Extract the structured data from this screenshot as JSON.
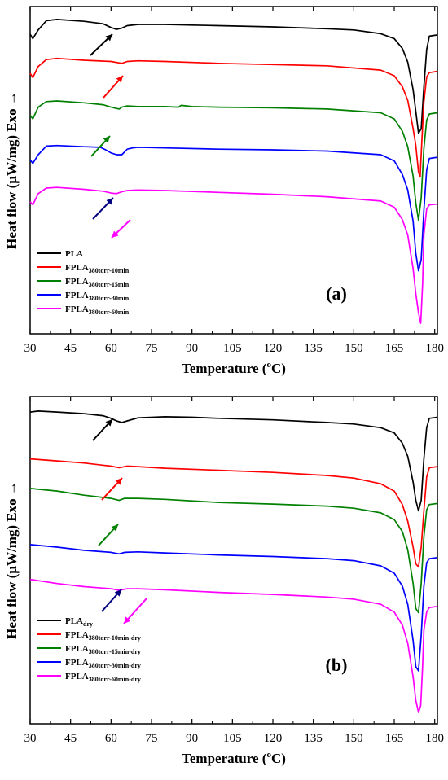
{
  "chart_data": [
    {
      "type": "line",
      "panel_label": "(a)",
      "xlabel": "Temperature (°C)",
      "xlabel_main": "Temperature (",
      "xlabel_sup": "o",
      "xlabel_end": "C)",
      "ylabel": "Heat flow (μW/mg) Exo →",
      "xlim": [
        30,
        181
      ],
      "xticks": [
        "30",
        "45",
        "60",
        "75",
        "90",
        "105",
        "120",
        "135",
        "150",
        "165",
        "180"
      ],
      "xtick_values": [
        30,
        45,
        60,
        75,
        90,
        105,
        120,
        135,
        150,
        165,
        180
      ],
      "y_ticks_shown": false,
      "legend_position": "lower-left",
      "series": [
        {
          "name": "PLA",
          "name_main": "PLA",
          "name_sub": "",
          "color": "#000000",
          "x": [
            30,
            31,
            33,
            36,
            40,
            50,
            57,
            60,
            62,
            64,
            66,
            70,
            80,
            90,
            100,
            120,
            140,
            150,
            160,
            165,
            168,
            170,
            172,
            173,
            174,
            175,
            176,
            177,
            178,
            181
          ],
          "y": [
            20.5,
            19.8,
            21.2,
            22.7,
            22.9,
            22.6,
            22.2,
            21.6,
            21.3,
            21.5,
            21.9,
            22.1,
            22.1,
            22.0,
            21.9,
            21.7,
            21.4,
            21.2,
            20.6,
            19.8,
            18.2,
            16.0,
            11.5,
            8.0,
            4.5,
            5.2,
            12.0,
            18.0,
            20.2,
            20.4
          ]
        },
        {
          "name": "FPLA380torr-10min",
          "name_main": "FPLA",
          "name_sub": "380torr-10min",
          "color": "#ff0000",
          "x": [
            30,
            31,
            33,
            36,
            40,
            50,
            60,
            64,
            66,
            70,
            80,
            100,
            120,
            140,
            160,
            165,
            168,
            170,
            172,
            173,
            174,
            174.6,
            175.2,
            176,
            177,
            178,
            181
          ],
          "y": [
            14.2,
            13.5,
            15.3,
            16.4,
            16.6,
            16.3,
            16.1,
            15.8,
            16.1,
            16.2,
            16.1,
            15.8,
            15.6,
            15.4,
            14.7,
            13.8,
            12.0,
            9.8,
            5.2,
            2.5,
            -1.8,
            -2.6,
            3.0,
            9.5,
            13.6,
            14.3,
            14.5
          ]
        },
        {
          "name": "FPLA380torr-15min",
          "name_main": "FPLA",
          "name_sub": "380torr-15min",
          "color": "#008000",
          "x": [
            30,
            31,
            33,
            36,
            40,
            50,
            57,
            60,
            62,
            63,
            64,
            66,
            70,
            80,
            85,
            86,
            90,
            100,
            120,
            140,
            160,
            165,
            168,
            170,
            172,
            173,
            174,
            175,
            176,
            177,
            178,
            181
          ],
          "y": [
            7.4,
            6.8,
            8.7,
            9.6,
            9.7,
            9.4,
            9.1,
            8.7,
            8.5,
            8.4,
            8.7,
            8.9,
            8.8,
            8.8,
            8.7,
            9.0,
            8.8,
            8.7,
            8.6,
            8.4,
            7.8,
            6.8,
            4.8,
            2.3,
            -2.5,
            -6.8,
            -9.6,
            -6.0,
            2.0,
            6.6,
            7.6,
            7.8
          ]
        },
        {
          "name": "FPLA380torr-30min",
          "name_main": "FPLA",
          "name_sub": "380torr-30min",
          "color": "#0000ff",
          "x": [
            30,
            31,
            33,
            36,
            40,
            50,
            56,
            58,
            60,
            62,
            64,
            66,
            68,
            70,
            80,
            100,
            120,
            140,
            160,
            165,
            168,
            170,
            172,
            173,
            174,
            175,
            176,
            177,
            178,
            181
          ],
          "y": [
            0.2,
            -0.4,
            1.0,
            2.4,
            2.5,
            2.3,
            2.2,
            1.8,
            1.3,
            1.0,
            1.0,
            1.9,
            2.1,
            2.2,
            2.1,
            1.9,
            1.8,
            1.6,
            1.0,
            0.0,
            -2.2,
            -4.7,
            -9.8,
            -15.0,
            -17.8,
            -16.0,
            -8.0,
            -1.5,
            0.4,
            0.6
          ]
        },
        {
          "name": "FPLA380torr-60min",
          "name_main": "FPLA",
          "name_sub": "380torr-60min",
          "color": "#ff00ff",
          "x": [
            30,
            31,
            33,
            36,
            40,
            50,
            57,
            60,
            62,
            64,
            66,
            70,
            80,
            100,
            120,
            140,
            160,
            165,
            168,
            170,
            172,
            173,
            174,
            174.8,
            175.5,
            176,
            177,
            178,
            181
          ],
          "y": [
            -6.6,
            -7.1,
            -5.3,
            -4.4,
            -4.3,
            -4.6,
            -4.9,
            -5.2,
            -5.3,
            -5.0,
            -4.8,
            -4.7,
            -4.8,
            -5.1,
            -5.4,
            -5.8,
            -6.5,
            -7.5,
            -9.5,
            -12.0,
            -17.5,
            -21.5,
            -24.6,
            -26.3,
            -20.0,
            -12.0,
            -7.8,
            -7.1,
            -7.0
          ]
        }
      ]
    },
    {
      "type": "line",
      "panel_label": "(b)",
      "xlabel": "Temperature (°C)",
      "xlabel_main": "Temperature (",
      "xlabel_sup": "o",
      "xlabel_end": "C)",
      "ylabel": "Heat flow (μW/mg) Exo →",
      "xlim": [
        30,
        181
      ],
      "xticks": [
        "30",
        "45",
        "60",
        "75",
        "90",
        "105",
        "120",
        "135",
        "150",
        "165",
        "180"
      ],
      "xtick_values": [
        30,
        45,
        60,
        75,
        90,
        105,
        120,
        135,
        150,
        165,
        180
      ],
      "y_ticks_shown": false,
      "legend_position": "lower-left",
      "series": [
        {
          "name": "PLAdry",
          "name_main": "PLA",
          "name_sub": "dry",
          "color": "#000000",
          "x": [
            30,
            33,
            40,
            50,
            57,
            60,
            62,
            64,
            66,
            70,
            80,
            90,
            100,
            120,
            140,
            150,
            160,
            165,
            168,
            170,
            172,
            173,
            174,
            175,
            176,
            177,
            178,
            181
          ],
          "y": [
            23.0,
            23.2,
            23.0,
            22.7,
            22.3,
            21.8,
            21.3,
            21.0,
            21.3,
            21.9,
            22.1,
            22.0,
            21.8,
            21.5,
            21.0,
            20.7,
            20.0,
            19.0,
            17.0,
            14.5,
            9.5,
            6.0,
            4.0,
            6.0,
            14.0,
            20.0,
            21.8,
            22.0
          ]
        },
        {
          "name": "FPLA380torr-10min-dry",
          "name_main": "FPLA",
          "name_sub": "380torr-10min-dry",
          "color": "#ff0000",
          "x": [
            30,
            40,
            50,
            60,
            63,
            66,
            70,
            80,
            100,
            120,
            140,
            150,
            160,
            165,
            168,
            170,
            172,
            173,
            174,
            175,
            176,
            177,
            178,
            181
          ],
          "y": [
            14.0,
            13.6,
            13.2,
            12.6,
            12.3,
            12.6,
            12.5,
            12.2,
            11.8,
            11.4,
            10.8,
            10.3,
            9.2,
            7.8,
            5.2,
            2.0,
            -3.0,
            -6.2,
            -6.8,
            -3.0,
            4.0,
            10.5,
            12.3,
            12.5
          ]
        },
        {
          "name": "FPLA380torr-15min-dry",
          "name_main": "FPLA",
          "name_sub": "380torr-15min-dry",
          "color": "#008000",
          "x": [
            30,
            40,
            50,
            60,
            63,
            65,
            70,
            80,
            100,
            120,
            140,
            150,
            160,
            165,
            168,
            170,
            172,
            173,
            174,
            175,
            176,
            177,
            178,
            181
          ],
          "y": [
            8.3,
            7.8,
            7.0,
            6.4,
            6.0,
            6.4,
            6.4,
            6.2,
            5.6,
            5.3,
            4.9,
            4.5,
            3.6,
            2.3,
            0.0,
            -3.5,
            -10.0,
            -14.8,
            -15.6,
            -10.0,
            -1.0,
            4.2,
            5.2,
            5.4
          ]
        },
        {
          "name": "FPLA380torr-30min-dry",
          "name_main": "FPLA",
          "name_sub": "380torr-30min-dry",
          "color": "#0000ff",
          "x": [
            30,
            40,
            50,
            60,
            63,
            65,
            70,
            80,
            100,
            120,
            140,
            150,
            160,
            165,
            168,
            170,
            172,
            173,
            174,
            175,
            176,
            177,
            178,
            181
          ],
          "y": [
            -2.5,
            -3.0,
            -3.6,
            -4.0,
            -4.3,
            -4.0,
            -3.9,
            -4.1,
            -4.5,
            -4.8,
            -5.2,
            -5.6,
            -6.6,
            -8.0,
            -10.5,
            -14.0,
            -21.0,
            -26.0,
            -26.8,
            -20.0,
            -10.5,
            -6.0,
            -5.2,
            -5.0
          ]
        },
        {
          "name": "FPLA380torr-60min-dry",
          "name_main": "FPLA",
          "name_sub": "380torr-60min-dry",
          "color": "#ff00ff",
          "x": [
            30,
            40,
            50,
            60,
            63,
            66,
            70,
            80,
            100,
            120,
            140,
            150,
            160,
            165,
            168,
            170,
            172,
            173,
            174,
            174.8,
            175.5,
            176,
            177,
            178,
            181
          ],
          "y": [
            -9.2,
            -10.0,
            -10.6,
            -11.0,
            -11.3,
            -11.0,
            -11.0,
            -11.2,
            -11.7,
            -12.1,
            -12.6,
            -13.0,
            -14.0,
            -15.5,
            -18.0,
            -21.5,
            -28.0,
            -32.5,
            -34.8,
            -33.5,
            -26.0,
            -19.0,
            -15.5,
            -14.6,
            -14.4
          ]
        }
      ]
    }
  ]
}
